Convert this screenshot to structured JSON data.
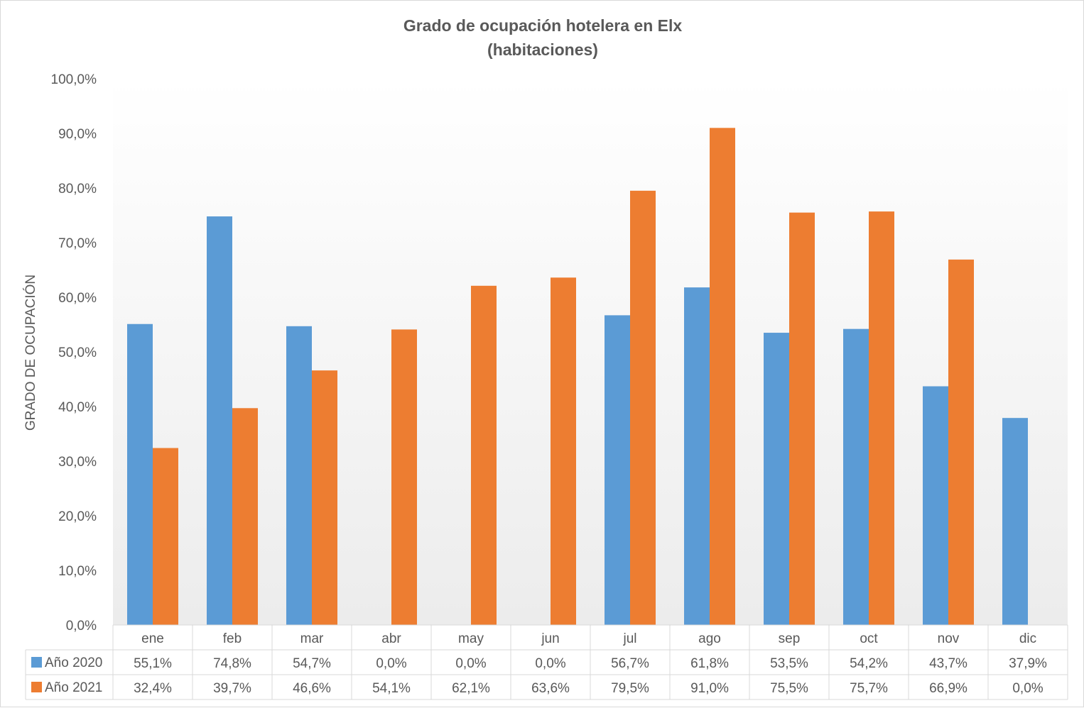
{
  "chart_data": {
    "type": "bar",
    "title": "Grado de ocupación hotelera en Elx",
    "subtitle": "(habitaciones)",
    "ylabel": "GRADO DE OCUPACIÓN",
    "xlabel": "",
    "ylim": [
      0,
      100
    ],
    "yticks": [
      "0,0%",
      "10,0%",
      "20,0%",
      "30,0%",
      "40,0%",
      "50,0%",
      "60,0%",
      "70,0%",
      "80,0%",
      "90,0%",
      "100,0%"
    ],
    "categories": [
      "ene",
      "feb",
      "mar",
      "abr",
      "may",
      "jun",
      "jul",
      "ago",
      "sep",
      "oct",
      "nov",
      "dic"
    ],
    "series": [
      {
        "name": "Año 2020",
        "color": "#5b9bd5",
        "values": [
          55.1,
          74.8,
          54.7,
          0.0,
          0.0,
          0.0,
          56.7,
          61.8,
          53.5,
          54.2,
          43.7,
          37.9
        ],
        "labels": [
          "55,1%",
          "74,8%",
          "54,7%",
          "0,0%",
          "0,0%",
          "0,0%",
          "56,7%",
          "61,8%",
          "53,5%",
          "54,2%",
          "43,7%",
          "37,9%"
        ]
      },
      {
        "name": "Año 2021",
        "color": "#ed7d31",
        "values": [
          32.4,
          39.7,
          46.6,
          54.1,
          62.1,
          63.6,
          79.5,
          91.0,
          75.5,
          75.7,
          66.9,
          0.0
        ],
        "labels": [
          "32,4%",
          "39,7%",
          "46,6%",
          "54,1%",
          "62,1%",
          "63,6%",
          "79,5%",
          "91,0%",
          "75,5%",
          "75,7%",
          "66,9%",
          "0,0%"
        ]
      }
    ],
    "data_table": true,
    "grid": false,
    "legend": "data-table"
  }
}
